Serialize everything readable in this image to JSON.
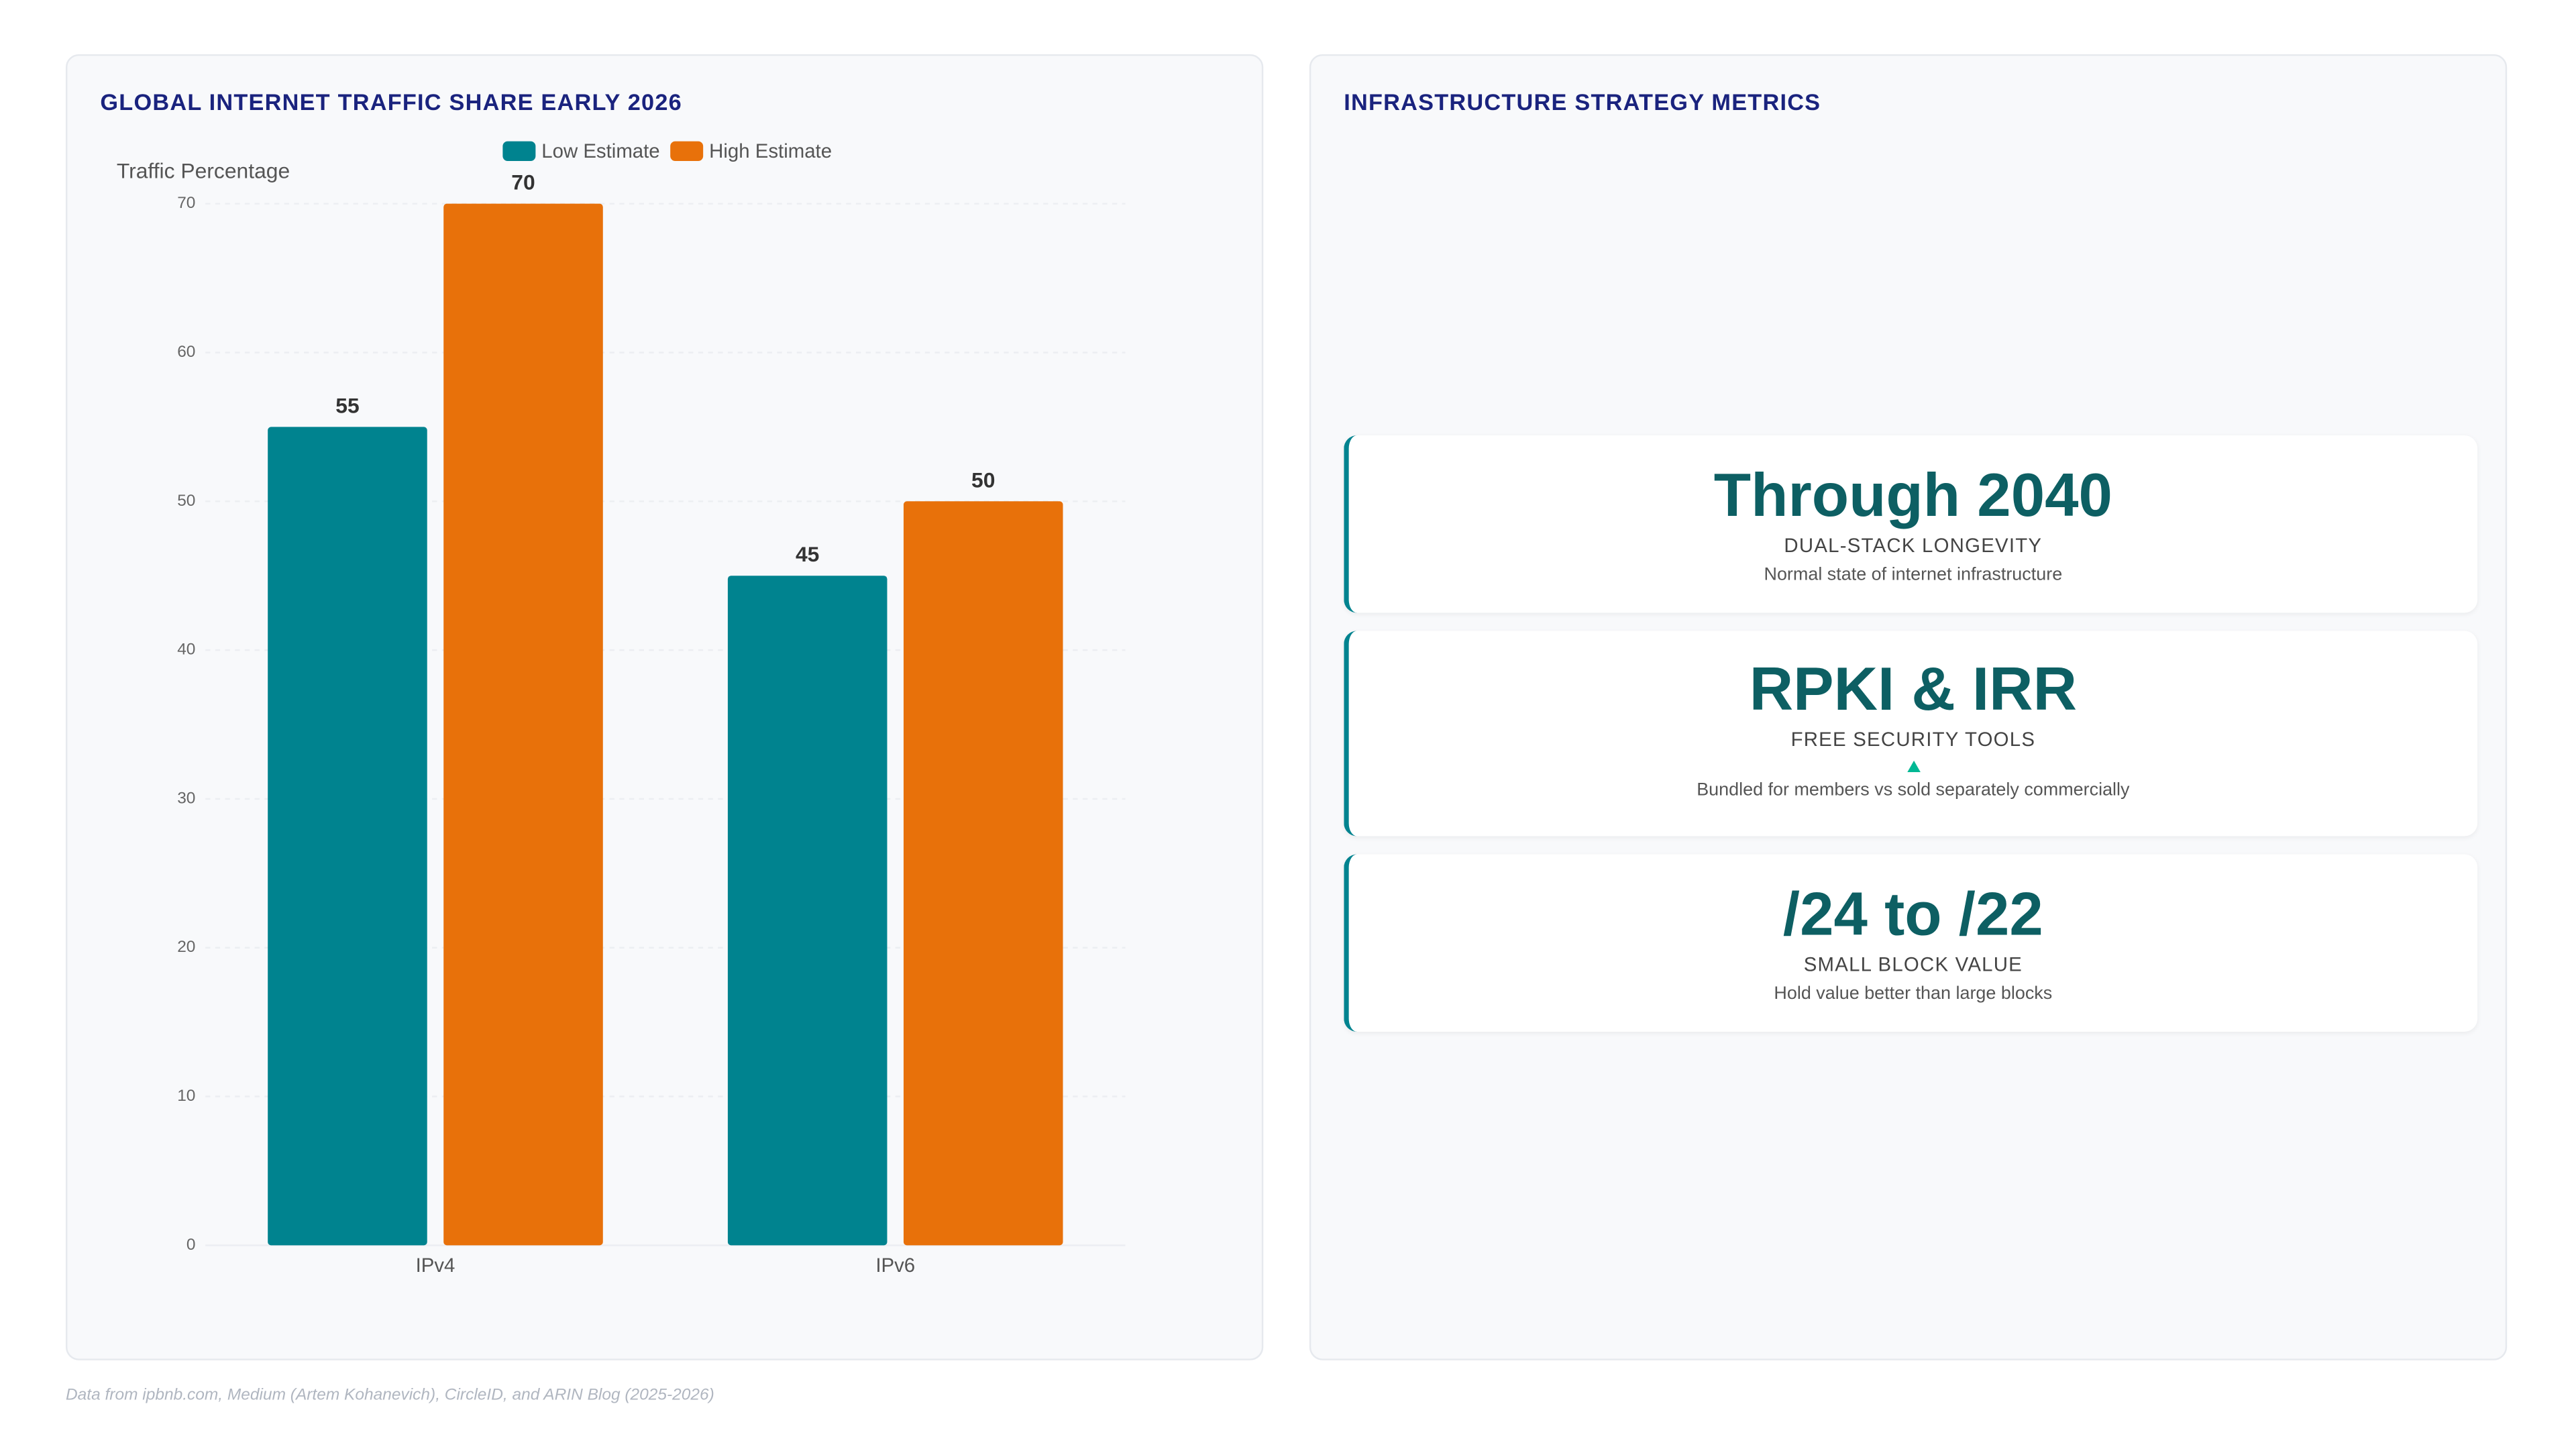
{
  "chart_data": {
    "type": "bar",
    "title": "GLOBAL INTERNET TRAFFIC SHARE EARLY 2026",
    "y_label": "Traffic Percentage",
    "categories": [
      "IPv4",
      "IPv6"
    ],
    "series": [
      {
        "name": "Low Estimate",
        "color": "#00838f",
        "values": [
          55,
          45
        ]
      },
      {
        "name": "High Estimate",
        "color": "#e8710a",
        "values": [
          70,
          50
        ]
      }
    ],
    "ylim": [
      0,
      70
    ],
    "yticks": [
      0,
      10,
      20,
      30,
      40,
      50,
      60,
      70
    ],
    "grid": true
  },
  "metrics": {
    "title": "INFRASTRUCTURE STRATEGY METRICS",
    "cards": [
      {
        "value": "Through 2040",
        "label": "DUAL-STACK LONGEVITY",
        "description": "Normal state of internet infrastructure"
      },
      {
        "value": "RPKI & IRR",
        "label": "FREE SECURITY TOOLS",
        "description": "Bundled for members vs sold separately commercially"
      },
      {
        "value": "/24 to /22",
        "label": "SMALL BLOCK VALUE",
        "description": "Hold value better than large blocks"
      }
    ]
  },
  "footer": "Data from ipbnb.com, Medium (Artem Kohanevich), CircleID, and ARIN Blog (2025-2026)"
}
